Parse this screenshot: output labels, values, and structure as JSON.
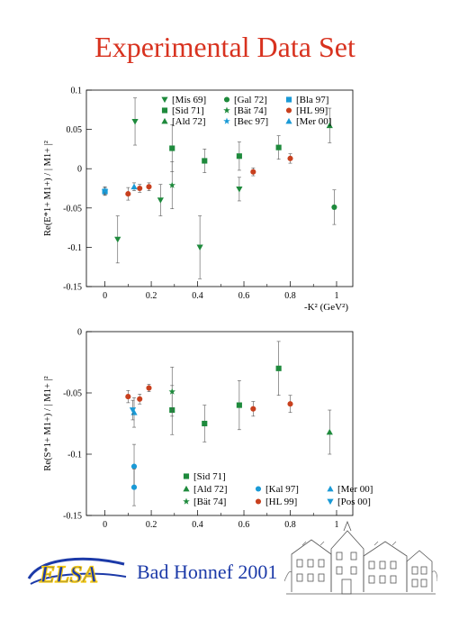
{
  "title": "Experimental Data Set",
  "footer": "Bad Honnef 2001",
  "logo": "ELSA",
  "colors": {
    "title": "#d8321f",
    "footer": "#1c3aa8",
    "green": "#1e8a3c",
    "red": "#c8401e",
    "blue": "#1a9ad6"
  },
  "chart_data": [
    {
      "type": "scatter",
      "ylabel": "Re(E*1+ M1+) / | M1+ |²",
      "xlabel": "-K² (GeV²)",
      "xlim": [
        -0.08,
        1.07
      ],
      "ylim": [
        -0.15,
        0.1
      ],
      "yticks": [
        0.1,
        0.05,
        0,
        -0.05,
        -0.1,
        -0.15
      ],
      "ytick_labels": [
        "0.1",
        "0.05",
        "0",
        "-0.05",
        "-0.1",
        "-0.15"
      ],
      "xticks": [
        0,
        0.2,
        0.4,
        0.6,
        0.8,
        1
      ],
      "xtick_labels": [
        "0",
        "0.2",
        "0.4",
        "0.6",
        "0.8",
        "1"
      ],
      "legend": [
        {
          "label": "[Mis 69]",
          "marker": "tri-down",
          "color": "green"
        },
        {
          "label": "[Gal 72]",
          "marker": "circle",
          "color": "green"
        },
        {
          "label": "[Bla 97]",
          "marker": "square",
          "color": "blue"
        },
        {
          "label": "[Sid 71]",
          "marker": "square",
          "color": "green"
        },
        {
          "label": "[Bät 74]",
          "marker": "star",
          "color": "green"
        },
        {
          "label": "[HL 99]",
          "marker": "circle",
          "color": "red"
        },
        {
          "label": "[Ald 72]",
          "marker": "tri-up",
          "color": "green"
        },
        {
          "label": "[Bec 97]",
          "marker": "star",
          "color": "blue"
        },
        {
          "label": "[Mer 00]",
          "marker": "tri-up",
          "color": "blue"
        }
      ],
      "series": [
        {
          "name": "[Mis 69]",
          "marker": "tri-down",
          "color": "green",
          "points": [
            [
              0.055,
              -0.09,
              0.03
            ],
            [
              0.13,
              0.06,
              0.03
            ],
            [
              0.24,
              -0.04,
              0.02
            ],
            [
              0.41,
              -0.1,
              0.04
            ],
            [
              0.58,
              -0.026,
              0.015
            ]
          ]
        },
        {
          "name": "[Gal 72]",
          "marker": "circle",
          "color": "green",
          "points": [
            [
              0.99,
              -0.049,
              0.022
            ]
          ]
        },
        {
          "name": "[Bla 97]",
          "marker": "square",
          "color": "blue",
          "points": [
            [
              0,
              -0.029,
              0.005
            ]
          ]
        },
        {
          "name": "[Sid 71]",
          "marker": "square",
          "color": "green",
          "points": [
            [
              0.29,
              0.026,
              0.03
            ],
            [
              0.43,
              0.01,
              0.015
            ],
            [
              0.58,
              0.016,
              0.018
            ],
            [
              0.75,
              0.027,
              0.015
            ]
          ]
        },
        {
          "name": "[Bät 74]",
          "marker": "star",
          "color": "green",
          "points": [
            [
              0.29,
              -0.021,
              0.03
            ]
          ]
        },
        {
          "name": "[HL 99]",
          "marker": "circle",
          "color": "red",
          "points": [
            [
              0.1,
              -0.032,
              0.008
            ],
            [
              0.15,
              -0.025,
              0.005
            ],
            [
              0.19,
              -0.023,
              0.005
            ],
            [
              0.64,
              -0.004,
              0.005
            ],
            [
              0.8,
              0.013,
              0.006
            ]
          ]
        },
        {
          "name": "[Ald 72]",
          "marker": "tri-up",
          "color": "green",
          "points": [
            [
              0.97,
              0.055,
              0.022
            ]
          ]
        },
        {
          "name": "[Bec 97]",
          "marker": "star",
          "color": "blue",
          "points": [
            [
              0,
              -0.028,
              0.005
            ]
          ]
        },
        {
          "name": "[Mer 00]",
          "marker": "tri-up",
          "color": "blue",
          "points": [
            [
              0.126,
              -0.023,
              0.005
            ]
          ]
        }
      ]
    },
    {
      "type": "scatter",
      "ylabel": "Re(S*1+ M1+) / | M1+ |²",
      "xlim": [
        -0.08,
        1.07
      ],
      "ylim": [
        -0.15,
        0
      ],
      "yticks": [
        0,
        -0.05,
        -0.1,
        -0.15
      ],
      "ytick_labels": [
        "0",
        "-0.05",
        "-0.1",
        "-0.15"
      ],
      "xticks": [
        0,
        0.2,
        0.4,
        0.6,
        0.8,
        1
      ],
      "xtick_labels": [
        "0",
        "0.2",
        "0.4",
        "0.6",
        "0.8",
        "1"
      ],
      "legend": [
        {
          "label": "[Sid 71]",
          "marker": "square",
          "color": "green"
        },
        {
          "label": "[Ald 72]",
          "marker": "tri-up",
          "color": "green"
        },
        {
          "label": "[Kal 97]",
          "marker": "circle",
          "color": "blue"
        },
        {
          "label": "[Mer 00]",
          "marker": "tri-up",
          "color": "blue"
        },
        {
          "label": "[Bät 74]",
          "marker": "star",
          "color": "green"
        },
        {
          "label": "[HL 99]",
          "marker": "circle",
          "color": "red"
        },
        {
          "label": "[Pos 00]",
          "marker": "tri-down",
          "color": "blue"
        }
      ],
      "series": [
        {
          "name": "[Sid 71]",
          "marker": "square",
          "color": "green",
          "points": [
            [
              0.29,
              -0.064,
              0.02
            ],
            [
              0.43,
              -0.075,
              0.015
            ],
            [
              0.58,
              -0.06,
              0.02
            ],
            [
              0.75,
              -0.03,
              0.022
            ]
          ]
        },
        {
          "name": "[Ald 72]",
          "marker": "tri-up",
          "color": "green",
          "points": [
            [
              0.97,
              -0.082,
              0.018
            ]
          ]
        },
        {
          "name": "[Kal 97]",
          "marker": "circle",
          "color": "blue",
          "points": [
            [
              0.126,
              -0.11,
              0.018
            ],
            [
              0.126,
              -0.127,
              0.015
            ]
          ]
        },
        {
          "name": "[Mer 00]",
          "marker": "tri-up",
          "color": "blue",
          "points": [
            [
              0.126,
              -0.066,
              0.012
            ]
          ]
        },
        {
          "name": "[Bät 74]",
          "marker": "star",
          "color": "green",
          "points": [
            [
              0.29,
              -0.049,
              0.02
            ]
          ]
        },
        {
          "name": "[HL 99]",
          "marker": "circle",
          "color": "red",
          "points": [
            [
              0.1,
              -0.053,
              0.005
            ],
            [
              0.15,
              -0.055,
              0.004
            ],
            [
              0.19,
              -0.046,
              0.003
            ],
            [
              0.64,
              -0.063,
              0.006
            ],
            [
              0.8,
              -0.059,
              0.007
            ]
          ]
        },
        {
          "name": "[Pos 00]",
          "marker": "tri-down",
          "color": "blue",
          "points": [
            [
              0.12,
              -0.064,
              0.008
            ]
          ]
        }
      ]
    }
  ]
}
